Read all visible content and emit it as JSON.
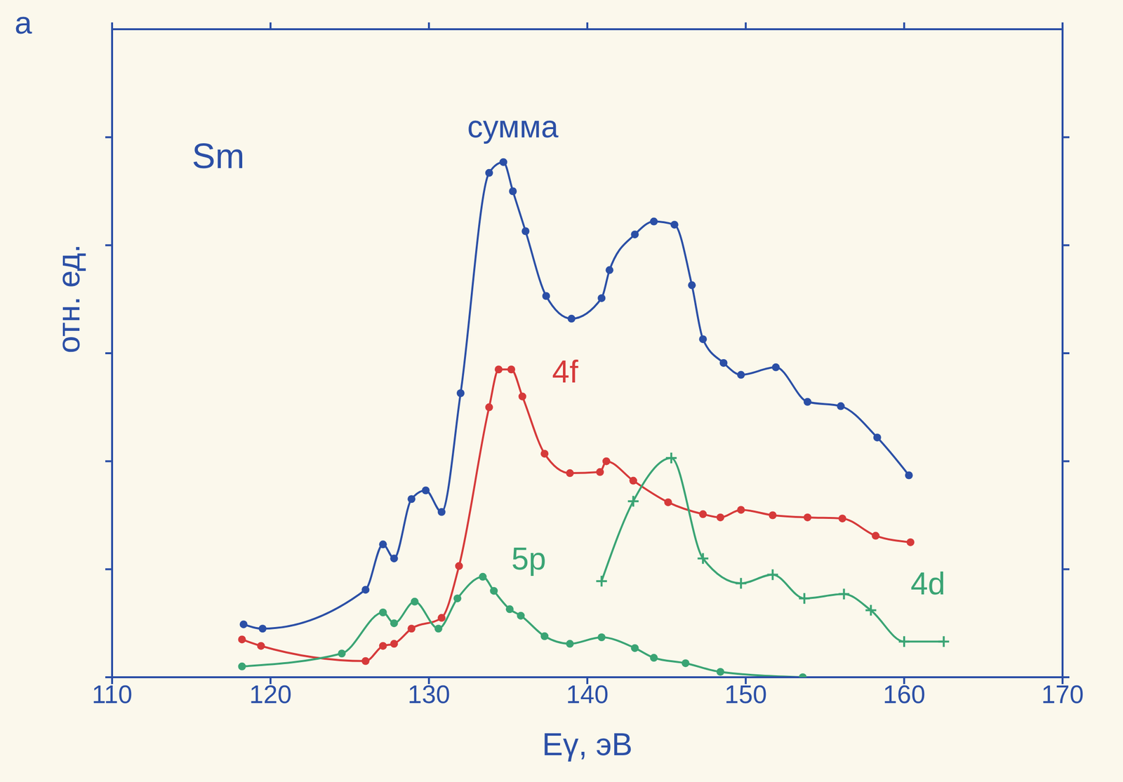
{
  "chart_data": {
    "type": "line",
    "panel_label": "а",
    "x_label": "Eγ, эВ",
    "y_label": "отн. ед.",
    "xlim": [
      110,
      170
    ],
    "xticks": [
      110,
      120,
      130,
      140,
      150,
      160,
      170
    ],
    "ylim": [
      0,
      6
    ],
    "yticks": [
      0,
      1,
      2,
      3,
      4,
      5
    ],
    "tick_labels": "x",
    "annotations": [
      {
        "text": "Sm",
        "x": 116.7,
        "y": 4.83
      }
    ],
    "series": [
      {
        "name": "сумма",
        "color": "#2b4fa6",
        "marker": "dot",
        "label_x": 135.3,
        "label_y": 5.1,
        "x": [
          118.3,
          119.5,
          126.0,
          127.1,
          127.8,
          128.9,
          129.8,
          130.8,
          132.0,
          133.8,
          134.7,
          135.3,
          136.1,
          137.4,
          139.0,
          140.9,
          141.4,
          143.0,
          144.2,
          145.5,
          146.6,
          147.3,
          148.6,
          149.7,
          151.9,
          153.9,
          156.0,
          158.3,
          160.3
        ],
        "values": [
          0.49,
          0.45,
          0.81,
          1.23,
          1.1,
          1.65,
          1.73,
          1.53,
          2.63,
          4.67,
          4.77,
          4.5,
          4.13,
          3.53,
          3.32,
          3.51,
          3.77,
          4.1,
          4.22,
          4.19,
          3.63,
          3.13,
          2.91,
          2.8,
          2.87,
          2.55,
          2.51,
          2.22,
          1.87
        ]
      },
      {
        "name": "4f",
        "color": "#d63a3a",
        "marker": "dot",
        "label_x": 138.6,
        "label_y": 2.83,
        "x": [
          118.2,
          119.4,
          126.0,
          127.1,
          127.8,
          128.9,
          130.8,
          131.9,
          133.8,
          134.4,
          135.2,
          135.9,
          137.3,
          138.9,
          140.8,
          141.2,
          142.9,
          145.1,
          147.3,
          148.4,
          149.7,
          151.7,
          153.9,
          156.1,
          158.2,
          160.4
        ],
        "values": [
          0.35,
          0.29,
          0.15,
          0.29,
          0.31,
          0.45,
          0.55,
          1.03,
          2.5,
          2.85,
          2.85,
          2.6,
          2.07,
          1.89,
          1.9,
          2.0,
          1.82,
          1.62,
          1.51,
          1.48,
          1.55,
          1.5,
          1.48,
          1.47,
          1.31,
          1.25
        ]
      },
      {
        "name": "5p",
        "color": "#3aa474",
        "marker": "dot",
        "label_x": 136.3,
        "label_y": 1.1,
        "x": [
          118.2,
          124.5,
          127.1,
          127.8,
          129.1,
          130.6,
          131.8,
          133.4,
          134.1,
          135.1,
          135.8,
          137.3,
          138.9,
          140.9,
          143.0,
          144.2,
          146.2,
          148.4,
          153.6
        ],
        "values": [
          0.1,
          0.22,
          0.6,
          0.5,
          0.7,
          0.45,
          0.73,
          0.93,
          0.8,
          0.63,
          0.57,
          0.38,
          0.31,
          0.37,
          0.27,
          0.18,
          0.13,
          0.05,
          0.0
        ]
      },
      {
        "name": "4d",
        "color": "#3aa474",
        "marker": "plus",
        "label_x": 161.5,
        "label_y": 0.87,
        "x": [
          140.9,
          142.9,
          145.3,
          147.3,
          149.7,
          151.7,
          153.7,
          156.2,
          157.9,
          160.0,
          162.5
        ],
        "values": [
          0.89,
          1.63,
          2.03,
          1.1,
          0.87,
          0.95,
          0.73,
          0.77,
          0.62,
          0.33,
          0.33
        ]
      }
    ]
  }
}
